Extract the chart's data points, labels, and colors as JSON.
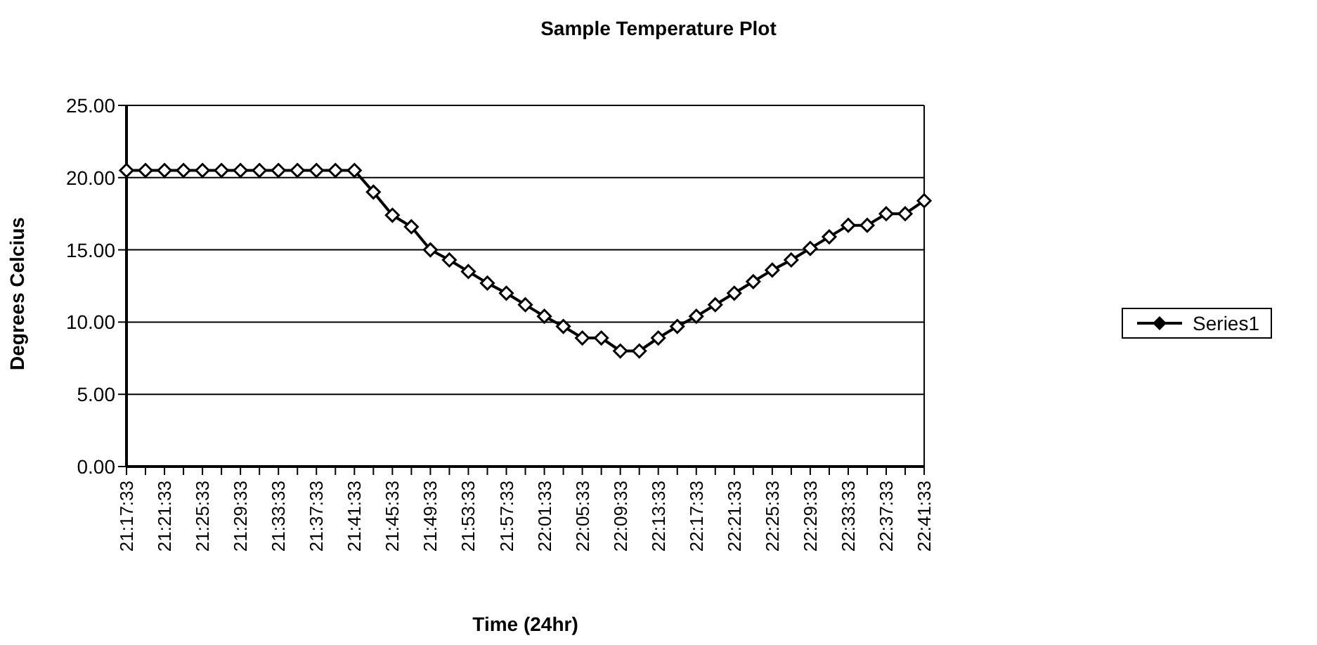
{
  "chart_data": {
    "type": "line",
    "title": "Sample Temperature Plot",
    "xlabel": "Time (24hr)",
    "ylabel": "Degrees Celcius",
    "categories": [
      "21:17:33",
      null,
      "21:21:33",
      null,
      "21:25:33",
      null,
      "21:29:33",
      null,
      "21:33:33",
      null,
      "21:37:33",
      null,
      "21:41:33",
      null,
      "21:45:33",
      null,
      "21:49:33",
      null,
      "21:53:33",
      null,
      "21:57:33",
      null,
      "22:01:33",
      null,
      "22:05:33",
      null,
      "22:09:33",
      null,
      "22:13:33",
      null,
      "22:17:33",
      null,
      "22:21:33",
      null,
      "22:25:33",
      null,
      "22:29:33",
      null,
      "22:33:33",
      null,
      "22:37:33",
      null,
      "22:41:33"
    ],
    "series": [
      {
        "name": "Series1",
        "color": "#000000",
        "values": [
          20.5,
          20.5,
          20.5,
          20.5,
          20.5,
          20.5,
          20.5,
          20.5,
          20.5,
          20.5,
          20.5,
          20.5,
          20.5,
          19.0,
          17.4,
          16.6,
          15.0,
          14.3,
          13.5,
          12.7,
          12.0,
          11.2,
          10.4,
          9.7,
          8.9,
          8.9,
          8.0,
          8.0,
          8.9,
          9.7,
          10.4,
          11.2,
          12.0,
          12.8,
          13.6,
          14.3,
          15.1,
          15.9,
          16.7,
          16.7,
          17.5,
          17.5,
          18.4
        ]
      }
    ],
    "ylim": [
      0,
      25
    ],
    "yticks": [
      {
        "value": 0,
        "label": "0.00"
      },
      {
        "value": 5,
        "label": "5.00"
      },
      {
        "value": 10,
        "label": "10.00"
      },
      {
        "value": 15,
        "label": "15.00"
      },
      {
        "value": 20,
        "label": "20.00"
      },
      {
        "value": 25,
        "label": "25.00"
      }
    ],
    "grid": "y",
    "legend": "right",
    "marker": "diamond",
    "line_style": "solid"
  }
}
